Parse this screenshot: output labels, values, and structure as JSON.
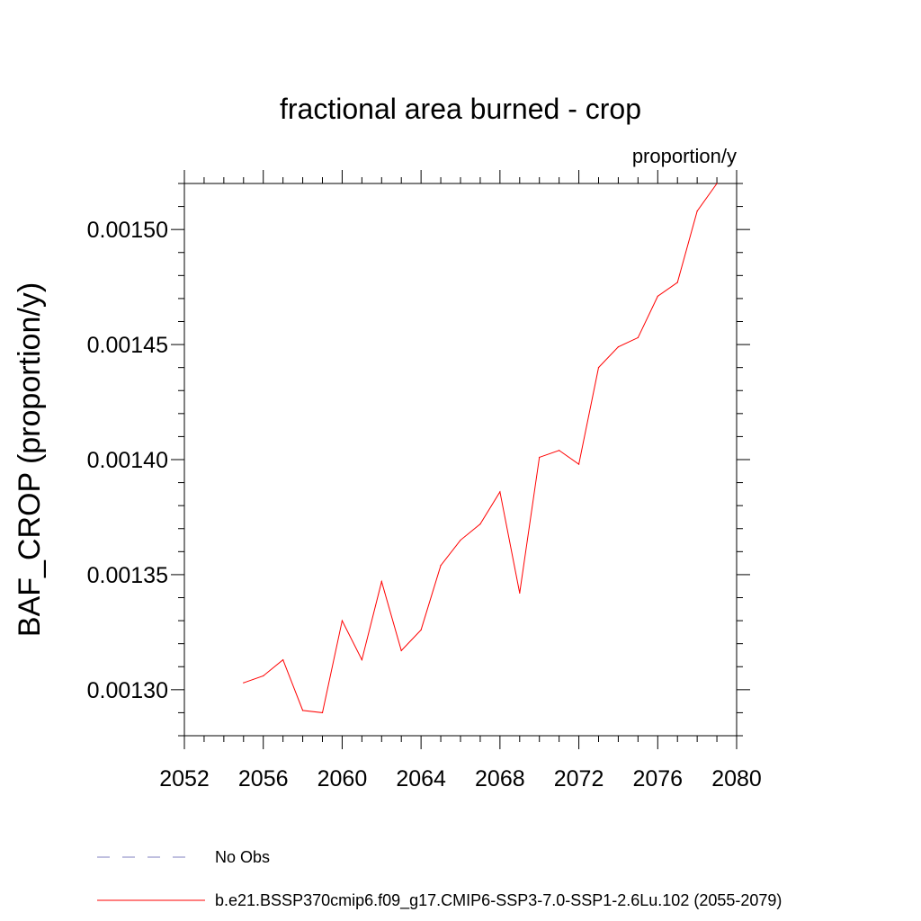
{
  "chart_data": {
    "type": "line",
    "title": "fractional area burned - crop",
    "units": "proportion/y",
    "ylabel": "BAF_CROP  (proportion/y)",
    "xlabel": "",
    "xlim": [
      2052,
      2080
    ],
    "ylim": [
      0.00128,
      0.00152
    ],
    "xticks": [
      2052,
      2056,
      2060,
      2064,
      2068,
      2072,
      2076,
      2080
    ],
    "xtick_labels": [
      "2052",
      "2056",
      "2060",
      "2064",
      "2068",
      "2072",
      "2076",
      "2080"
    ],
    "yticks": [
      0.0013,
      0.00135,
      0.0014,
      0.00145,
      0.0015
    ],
    "ytick_labels": [
      "0.00130",
      "0.00135",
      "0.00140",
      "0.00145",
      "0.00150"
    ],
    "series": [
      {
        "name": "b.e21.BSSP370cmip6.f09_g17.CMIP6-SSP3-7.0-SSP1-2.6Lu.102 (2055-2079)",
        "color": "#ff0000",
        "x": [
          2055,
          2056,
          2057,
          2058,
          2059,
          2060,
          2061,
          2062,
          2063,
          2064,
          2065,
          2066,
          2067,
          2068,
          2069,
          2070,
          2071,
          2072,
          2073,
          2074,
          2075,
          2076,
          2077,
          2078,
          2079
        ],
        "y": [
          0.001303,
          0.001306,
          0.001313,
          0.001291,
          0.00129,
          0.00133,
          0.001313,
          0.001347,
          0.001317,
          0.001326,
          0.001354,
          0.001365,
          0.001372,
          0.001386,
          0.001342,
          0.001401,
          0.001404,
          0.001398,
          0.00144,
          0.001449,
          0.001453,
          0.001471,
          0.001477,
          0.001508,
          0.00152
        ]
      }
    ],
    "legend": [
      {
        "label": "No Obs",
        "color": "#7f7fbf",
        "style": "dashed"
      },
      {
        "label": "b.e21.BSSP370cmip6.f09_g17.CMIP6-SSP3-7.0-SSP1-2.6Lu.102 (2055-2079)",
        "color": "#ff0000",
        "style": "solid"
      }
    ]
  }
}
